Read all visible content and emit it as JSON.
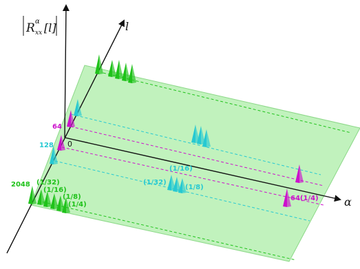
{
  "colors": {
    "plane_fill": "#b6f0b2",
    "plane_stroke": "#8cd888",
    "green": "#1fc21a",
    "cyan": "#26c9d2",
    "magenta": "#cc11cc",
    "axis": "#111111"
  },
  "axes": {
    "x_symbol": "α",
    "l_symbol": "l",
    "origin": "0",
    "y_label": {
      "base": "R",
      "superscript": "α",
      "subscript": "xx",
      "argument": "[l]"
    }
  },
  "labels": {
    "mag_64": "64",
    "cyan_128": "128",
    "green_2048": "2048",
    "green_1_32": "(1/32)",
    "green_1_16": "(1/16)",
    "green_1_8": "(1/8)",
    "green_1_4": "(1/4)",
    "cyan_1_16": "(1/16)",
    "cyan_1_32": "(1/32)",
    "cyan_1_8": "(1/8)",
    "mag_64_1_4": "64(1/4)"
  },
  "icons": {
    "spike": "cone-spike-icon"
  }
}
